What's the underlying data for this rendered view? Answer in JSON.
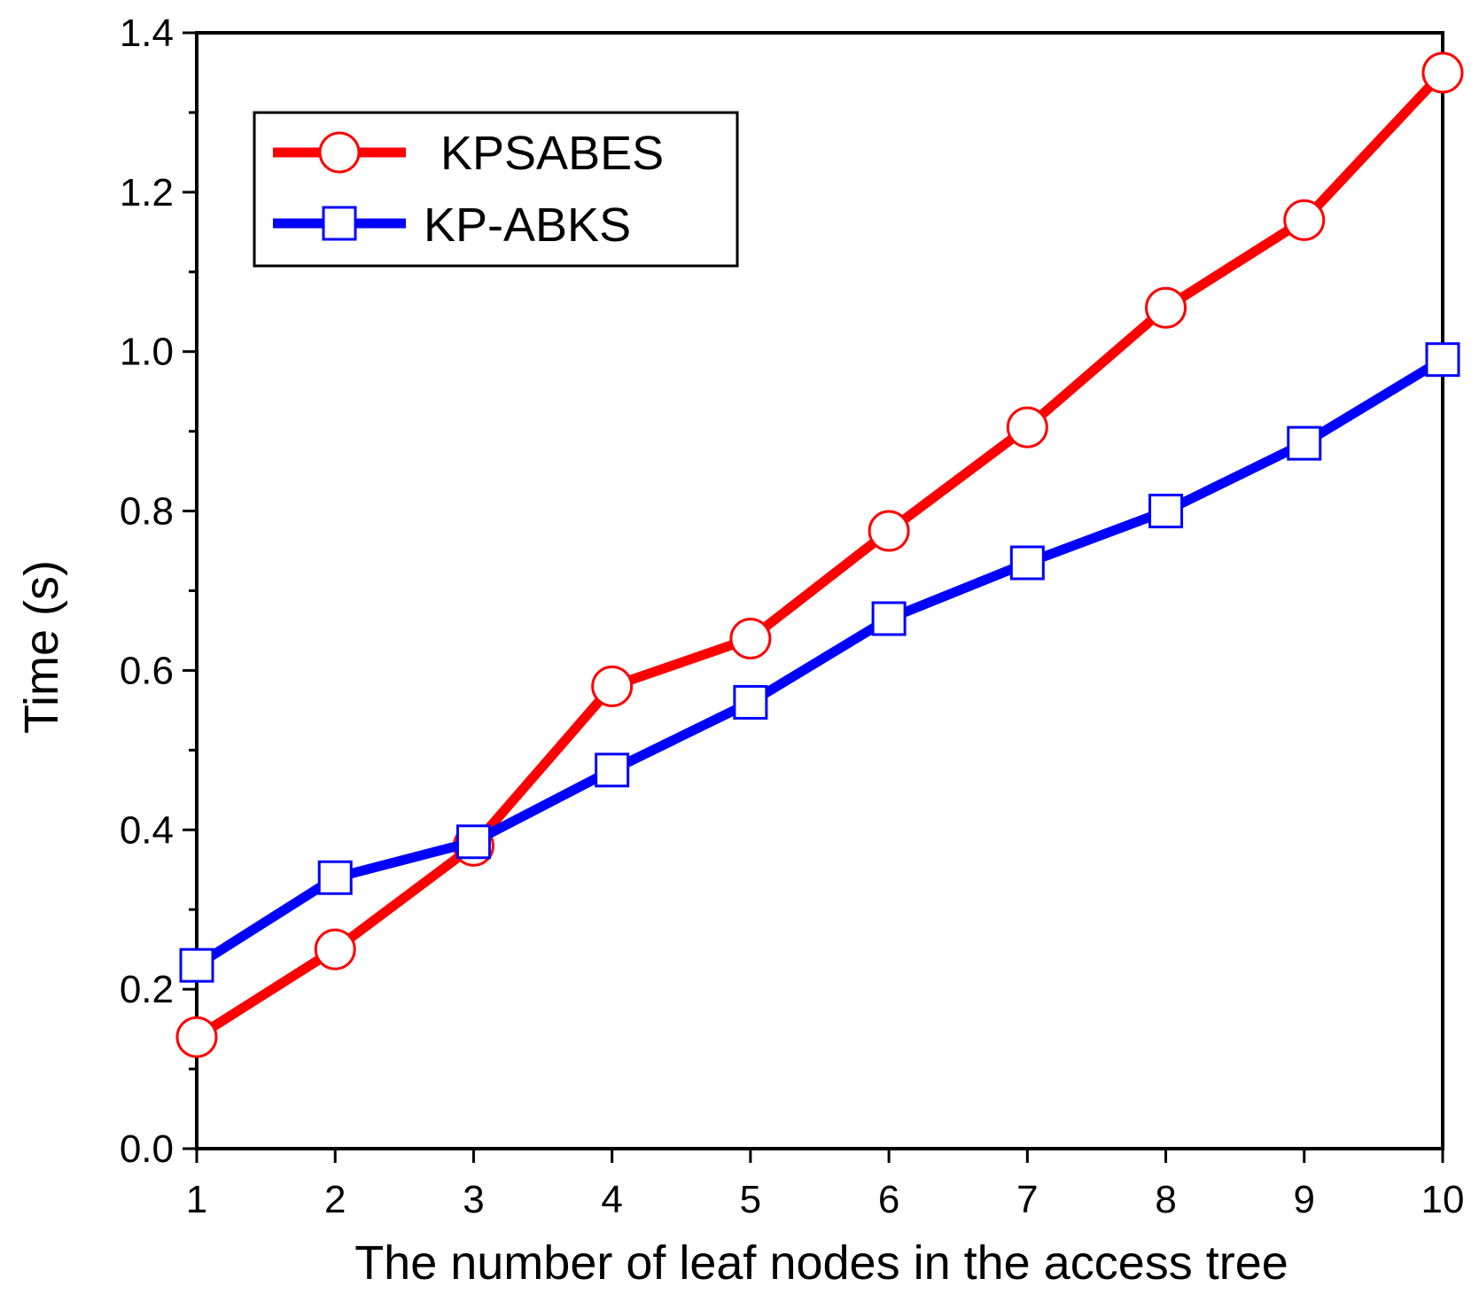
{
  "chart_data": {
    "type": "line",
    "title": "",
    "xlabel": "The number of leaf nodes in the access tree",
    "ylabel": "Time (s)",
    "x": [
      1,
      2,
      3,
      4,
      5,
      6,
      7,
      8,
      9,
      10
    ],
    "x_ticks": [
      "1",
      "2",
      "3",
      "4",
      "5",
      "6",
      "7",
      "8",
      "9",
      "10"
    ],
    "xlim": [
      1,
      10
    ],
    "ylim": [
      0,
      1.4
    ],
    "y_ticks": [
      "0.0",
      "0.2",
      "0.4",
      "0.6",
      "0.8",
      "1.0",
      "1.2",
      "1.4"
    ],
    "grid": false,
    "legend_position": "top-left",
    "series": [
      {
        "name": "KPSABES",
        "color": "#ff0000",
        "marker": "circle",
        "values": [
          0.14,
          0.25,
          0.38,
          0.58,
          0.64,
          0.775,
          0.905,
          1.055,
          1.165,
          1.35
        ]
      },
      {
        "name": "KP-ABKS",
        "color": "#0000ff",
        "marker": "square",
        "values": [
          0.23,
          0.34,
          0.385,
          0.475,
          0.56,
          0.665,
          0.735,
          0.8,
          0.885,
          0.99
        ]
      }
    ]
  }
}
